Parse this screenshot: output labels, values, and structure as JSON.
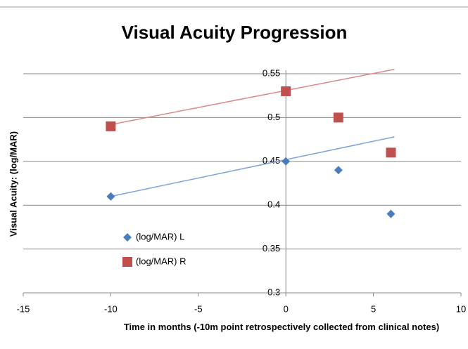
{
  "chart_data": {
    "type": "scatter",
    "title": "Visual Acuity Progression",
    "x_label": "Time in months (-10m point retrospectively collected from clinical notes)",
    "y_label": "Visual Acuity: (log/MAR)",
    "x": [
      -10,
      0,
      3,
      6
    ],
    "series": [
      {
        "name": "(log/MAR) L",
        "color": "#4a7ebb",
        "marker": "diamond",
        "values": [
          0.41,
          0.45,
          0.44,
          0.39
        ]
      },
      {
        "name": "(log/MAR) R",
        "color": "#c0504d",
        "marker": "square",
        "values": [
          0.49,
          0.53,
          0.5,
          0.46
        ]
      }
    ],
    "trendlines": [
      {
        "color": "#7ea3d6",
        "x": [
          -10,
          6.2
        ],
        "values": [
          0.41,
          0.478
        ]
      },
      {
        "color": "#d98a88",
        "x": [
          -10,
          6.2
        ],
        "values": [
          0.492,
          0.555
        ]
      }
    ],
    "xlim": [
      -15,
      10
    ],
    "xticks": [
      -15,
      -10,
      -5,
      0,
      5,
      10
    ],
    "ylim": [
      0.3,
      0.55
    ],
    "yticks": [
      0.3,
      0.35,
      0.4,
      0.45,
      0.5,
      0.55
    ],
    "grid": true,
    "legend": "inside-left"
  }
}
